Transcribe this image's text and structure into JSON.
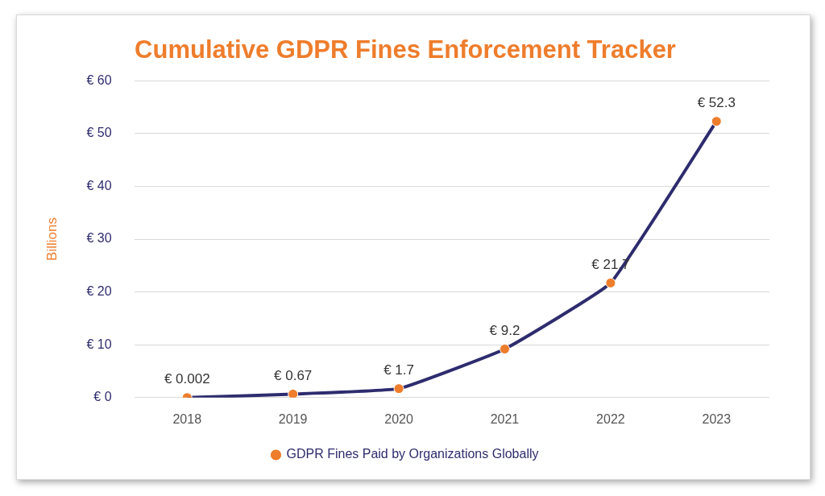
{
  "chart_data": {
    "type": "line",
    "title": "Cumulative GDPR Fines Enforcement Tracker",
    "y_label": "Billions",
    "categories": [
      "2018",
      "2019",
      "2020",
      "2021",
      "2022",
      "2023"
    ],
    "series": [
      {
        "name": "GDPR Fines Paid by Organizations Globally",
        "color": "#2e2c6e",
        "marker": "circle",
        "values": [
          0.002,
          0.67,
          1.7,
          9.2,
          21.7,
          52.3
        ],
        "value_labels": [
          "€ 0.002",
          "€ 0.67",
          "€ 1.7",
          "€ 9.2",
          "€ 21.7",
          "€ 52.3"
        ]
      }
    ],
    "ylim": [
      0,
      60
    ],
    "yticks": [
      {
        "value": 0,
        "label": "€ 0"
      },
      {
        "value": 10,
        "label": "€ 10"
      },
      {
        "value": 20,
        "label": "€ 20"
      },
      {
        "value": 30,
        "label": "€ 30"
      },
      {
        "value": 40,
        "label": "€ 40"
      },
      {
        "value": 50,
        "label": "€ 50"
      },
      {
        "value": 60,
        "label": "€ 60"
      }
    ],
    "grid": true,
    "legend": "bottom",
    "data_labels": true
  }
}
